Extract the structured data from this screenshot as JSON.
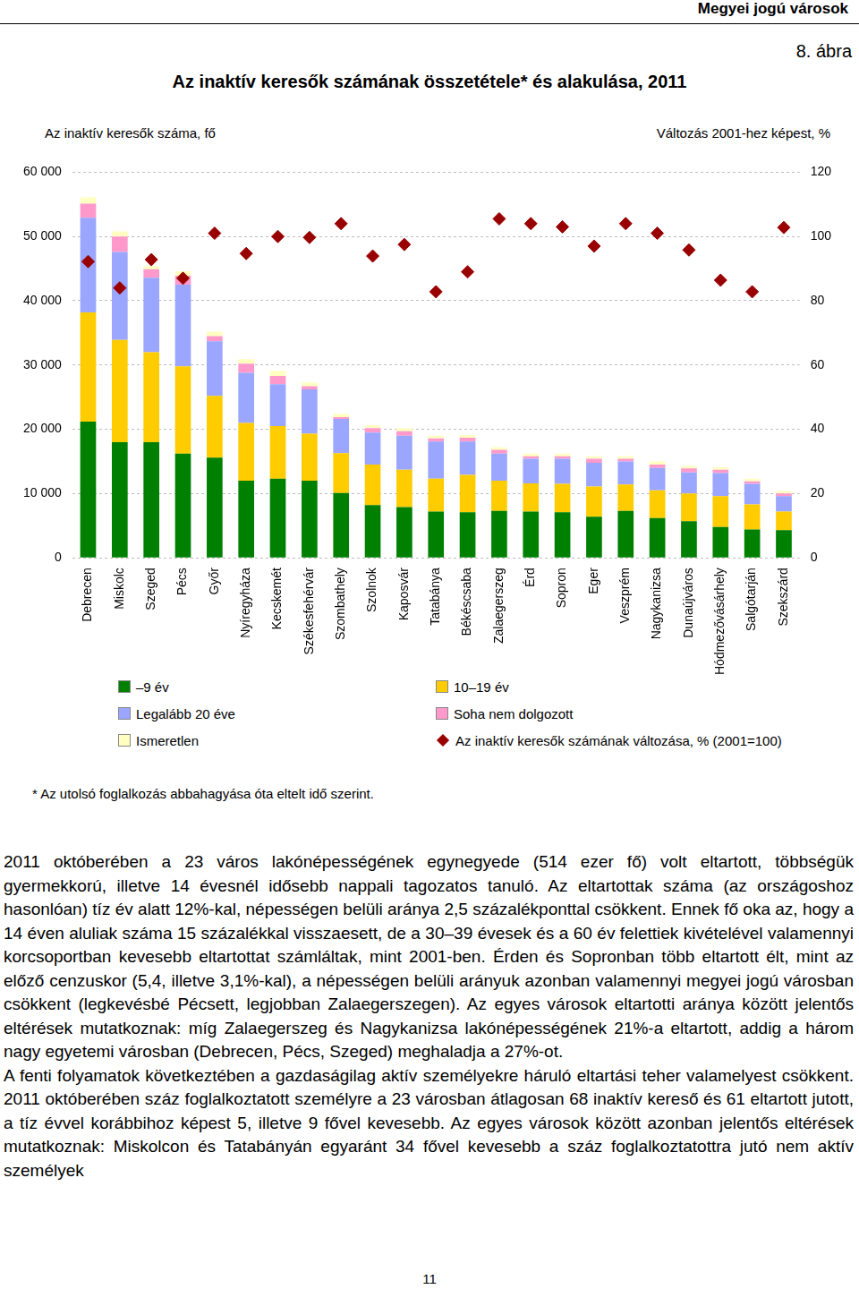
{
  "page": {
    "header": "Megyei jogú városok",
    "figure_number": "8. ábra",
    "footnote": "* Az utolsó foglalkozás abbahagyása óta eltelt idő szerint.",
    "paragraphs": [
      "2011 októberében a 23 város lakónépességének egynegyede (514 ezer fő) volt eltartott, többségük gyermekkorú, illetve 14 évesnél idősebb nappali tagozatos tanuló. Az eltartottak száma (az országoshoz hasonlóan) tíz év alatt 12%-kal, népességen belüli aránya 2,5 százalékponttal csökkent. Ennek fő oka az, hogy a 14 éven aluliak száma 15 százalékkal visszaesett, de a 30–39 évesek és a 60 év felettiek kivételével valamennyi korcsoportban kevesebb eltartottat számláltak, mint 2001-ben. Érden és Sopronban több eltartott élt, mint az előző cenzuskor (5,4, illetve 3,1%-kal), a népességen belüli arányuk azonban valamennyi megyei jogú városban csökkent (legkevésbé Pécsett, legjobban Zalaegerszegen). Az egyes városok eltartotti aránya között jelentős eltérések mutatkoznak: míg Zalaegerszeg és Nagykanizsa lakónépességének 21%-a eltartott, addig a három nagy egyetemi városban (Debrecen, Pécs, Szeged) meghaladja a 27%-ot.",
      "A fenti folyamatok következtében a gazdaságilag aktív személyekre háruló eltartási teher valamelyest csökkent. 2011 októberében száz foglalkoztatott személyre a 23 városban átlagosan 68 inaktív kereső és 61 eltartott jutott, a tíz évvel korábbihoz képest 5, illetve 9 fővel kevesebb. Az egyes városok között azonban jelentős eltérések mutatkoznak: Miskolcon és Tatabányán egyaránt 34 fővel kevesebb a száz foglalkoztatottra jutó nem aktív személyek"
    ],
    "page_number": "11"
  },
  "chart_data": {
    "type": "bar",
    "title": "Az inaktív keresők számának összetétele* és alakulása, 2011",
    "y_label": "Az inaktív keresők száma, fő",
    "y2_label": "Változás 2001-hez képest, %",
    "stacked": true,
    "grid": true,
    "categories": [
      "Debrecen",
      "Miskolc",
      "Szeged",
      "Pécs",
      "Győr",
      "Nyíregyháza",
      "Kecskemét",
      "Székesfehérvár",
      "Szombathely",
      "Szolnok",
      "Kaposvár",
      "Tatabánya",
      "Békéscsaba",
      "Zalaegerszeg",
      "Érd",
      "Sopron",
      "Eger",
      "Veszprém",
      "Nagykanizsa",
      "Dunaújváros",
      "Hódmezővásárhely",
      "Salgótarján",
      "Szekszárd"
    ],
    "ylim": [
      0,
      60000
    ],
    "yticks": [
      0,
      {
        "value": 10000,
        "label": "10 000"
      },
      {
        "value": 20000,
        "label": "20 000"
      },
      {
        "value": 30000,
        "label": "30 000"
      },
      {
        "value": 40000,
        "label": "40 000"
      },
      {
        "value": 50000,
        "label": "50 000"
      },
      {
        "value": 60000,
        "label": "60 000"
      }
    ],
    "y2lim": [
      0,
      120
    ],
    "y2ticks": [
      0,
      20,
      40,
      60,
      80,
      100,
      120
    ],
    "series": [
      {
        "name": "–9 év",
        "color": "#008000",
        "values": [
          21200,
          18000,
          18000,
          16200,
          15600,
          12000,
          12300,
          12000,
          10100,
          8200,
          7900,
          7200,
          7100,
          7300,
          7200,
          7100,
          6400,
          7300,
          6200,
          5700,
          4800,
          4400,
          4300
        ]
      },
      {
        "name": "10–19 év",
        "color": "#ffcc00",
        "values": [
          17000,
          15900,
          14000,
          13600,
          9600,
          9000,
          8200,
          7300,
          6200,
          6300,
          5800,
          5100,
          5800,
          4700,
          4400,
          4400,
          4700,
          4100,
          4300,
          4300,
          4800,
          3900,
          2900
        ]
      },
      {
        "name": "Legalább 20 éve",
        "color": "#9aa6ff",
        "values": [
          14700,
          13700,
          11600,
          12700,
          8500,
          7800,
          6500,
          6900,
          5300,
          5000,
          5300,
          5800,
          5200,
          4200,
          3800,
          3900,
          3700,
          3600,
          3500,
          3300,
          3600,
          3200,
          2400
        ]
      },
      {
        "name": "Soha nem dolgozott",
        "color": "#ff99cc",
        "values": [
          2200,
          2400,
          1300,
          1400,
          800,
          1400,
          1300,
          500,
          300,
          700,
          700,
          500,
          600,
          600,
          400,
          400,
          600,
          400,
          500,
          600,
          500,
          400,
          400
        ]
      },
      {
        "name": "Ismeretlen",
        "color": "#ffffc0",
        "values": [
          1000,
          800,
          500,
          700,
          700,
          700,
          800,
          600,
          500,
          400,
          500,
          400,
          400,
          400,
          400,
          400,
          400,
          400,
          500,
          400,
          400,
          400,
          400
        ]
      },
      {
        "name": "Az inaktív keresők számának változása, % (2001=100)",
        "color": "#990000",
        "type": "line",
        "line_style": "none",
        "marker": "diamond",
        "axis": "y2",
        "values": [
          92.2,
          84,
          92.8,
          87,
          101,
          94.7,
          100,
          99.7,
          104,
          93.9,
          97.5,
          82.8,
          89,
          105.5,
          104,
          103,
          97,
          104,
          101,
          95.8,
          86.4,
          82.8,
          102.8
        ]
      }
    ]
  }
}
